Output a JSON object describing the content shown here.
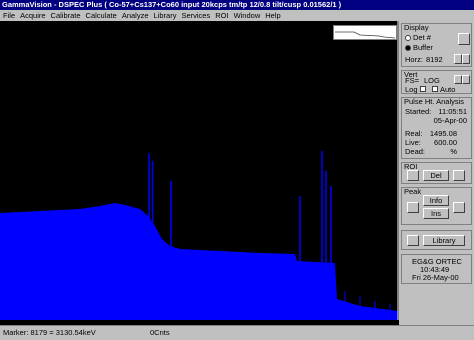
{
  "window": {
    "title": "GammaVision - DSPEC Plus ( Co-57+Cs137+Co60 input 20kcps tm/tp 12/0.8 tilt/cusp 0.01562/1 )"
  },
  "menu": [
    "File",
    "Acquire",
    "Calibrate",
    "Calculate",
    "Analyze",
    "Library",
    "Services",
    "ROI",
    "Window",
    "Help"
  ],
  "panel": {
    "display": {
      "heading": "Display",
      "det": "Det #",
      "buffer": "Buffer",
      "horz_label": "Horz:",
      "horz_value": "8192"
    },
    "vert": {
      "heading": "Vert",
      "fs": "FS=",
      "mode": "LOG",
      "log": "Log",
      "auto": "Auto"
    },
    "pha": {
      "heading": "Pulse Ht. Analysis",
      "started_label": "Started:",
      "started_time": "11:05:51",
      "started_date": "05-Apr-00",
      "real_label": "Real:",
      "real": "1495.08",
      "live_label": "Live:",
      "live": "600.00",
      "dead_label": "Dead:",
      "dead": "%"
    },
    "roi": {
      "heading": "ROI",
      "del": "Del"
    },
    "peak": {
      "heading": "Peak",
      "info": "Info",
      "ins": "Ins"
    },
    "library": "Library",
    "clock": {
      "company": "EG&G ORTEC",
      "time": "10:43:49",
      "date": "Fri 26-May-00"
    }
  },
  "status": {
    "marker": "Marker: 8179 = 3130.54keV",
    "counts": "0Cnts"
  }
}
